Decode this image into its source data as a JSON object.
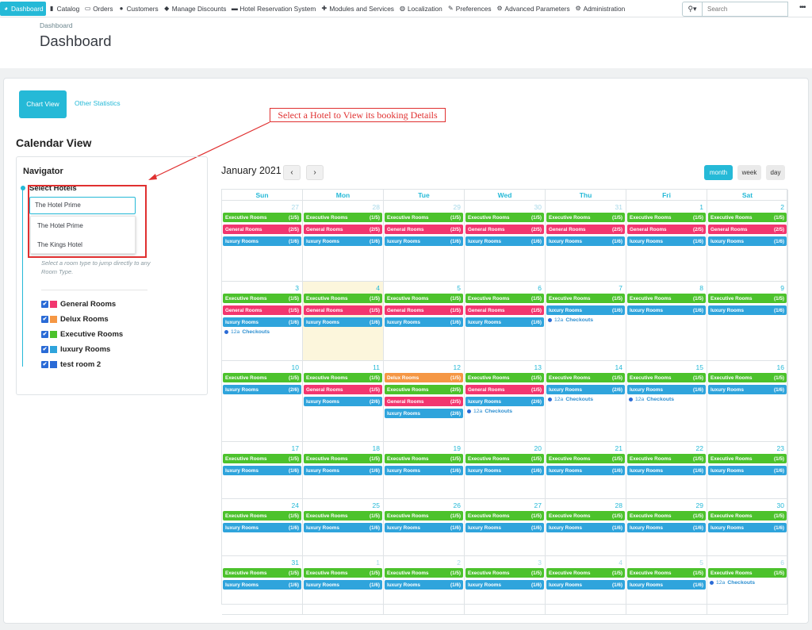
{
  "nav": {
    "items": [
      {
        "label": "Dashboard",
        "icon": "dashboard-icon",
        "active": true
      },
      {
        "label": "Catalog",
        "icon": "book-icon"
      },
      {
        "label": "Orders",
        "icon": "credit-card-icon"
      },
      {
        "label": "Customers",
        "icon": "users-icon"
      },
      {
        "label": "Manage Discounts",
        "icon": "tag-icon"
      },
      {
        "label": "Hotel Reservation System",
        "icon": "bed-icon"
      },
      {
        "label": "Modules and Services",
        "icon": "puzzle-icon"
      },
      {
        "label": "Localization",
        "icon": "globe-icon"
      },
      {
        "label": "Preferences",
        "icon": "wrench-icon"
      },
      {
        "label": "Advanced Parameters",
        "icon": "cogs-icon"
      },
      {
        "label": "Administration",
        "icon": "gear-icon"
      }
    ],
    "search_placeholder": "Search"
  },
  "header": {
    "breadcrumb": "Dashboard",
    "title": "Dashboard"
  },
  "tabs": {
    "chart_view": "Chart View",
    "other_statistics": "Other Statistics"
  },
  "annotation": "Select a Hotel to View its booking Details",
  "calendar_view_title": "Calendar View",
  "navigator": {
    "heading": "Navigator",
    "select_label": "Select Hotels",
    "selected_hotel": "The Hotel Prime",
    "options": [
      "The Hotel Prime",
      "The Kings Hotel"
    ],
    "hint": "Select a room type to jump directly to any Room Type.",
    "room_types": [
      {
        "label": "General Rooms",
        "color": "#f2366f",
        "checked": true
      },
      {
        "label": "Delux Rooms",
        "color": "#f59744",
        "checked": true
      },
      {
        "label": "Executive Rooms",
        "color": "#4cc22c",
        "checked": true
      },
      {
        "label": "luxury Rooms",
        "color": "#2fa4dc",
        "checked": true
      },
      {
        "label": "test room 2",
        "color": "#2a6bd6",
        "checked": true
      }
    ]
  },
  "calendar": {
    "month_title": "January 2021",
    "prev": "‹",
    "next": "›",
    "view_buttons": {
      "month": "month",
      "week": "week",
      "day": "day"
    },
    "days": [
      "Sun",
      "Mon",
      "Tue",
      "Wed",
      "Thu",
      "Fri",
      "Sat"
    ],
    "colors": {
      "Executive Rooms": "#4cc22c",
      "General Rooms": "#f2366f",
      "luxury Rooms": "#2fa4dc",
      "Delux Rooms": "#f59744"
    },
    "checkout_label": "Checkouts",
    "weeks": [
      [
        {
          "d": "27",
          "other": true,
          "ev": [
            [
              "Executive Rooms",
              "(1/5)"
            ],
            [
              "General Rooms",
              "(2/5)"
            ],
            [
              "luxury Rooms",
              "(1/6)"
            ]
          ]
        },
        {
          "d": "28",
          "other": true,
          "ev": [
            [
              "Executive Rooms",
              "(1/5)"
            ],
            [
              "General Rooms",
              "(2/5)"
            ],
            [
              "luxury Rooms",
              "(1/6)"
            ]
          ]
        },
        {
          "d": "29",
          "other": true,
          "ev": [
            [
              "Executive Rooms",
              "(1/5)"
            ],
            [
              "General Rooms",
              "(2/5)"
            ],
            [
              "luxury Rooms",
              "(1/6)"
            ]
          ]
        },
        {
          "d": "30",
          "other": true,
          "ev": [
            [
              "Executive Rooms",
              "(1/5)"
            ],
            [
              "General Rooms",
              "(2/5)"
            ],
            [
              "luxury Rooms",
              "(1/6)"
            ]
          ]
        },
        {
          "d": "31",
          "other": true,
          "ev": [
            [
              "Executive Rooms",
              "(1/5)"
            ],
            [
              "General Rooms",
              "(2/5)"
            ],
            [
              "luxury Rooms",
              "(1/6)"
            ]
          ]
        },
        {
          "d": "1",
          "ev": [
            [
              "Executive Rooms",
              "(1/5)"
            ],
            [
              "General Rooms",
              "(2/5)"
            ],
            [
              "luxury Rooms",
              "(1/6)"
            ]
          ]
        },
        {
          "d": "2",
          "ev": [
            [
              "Executive Rooms",
              "(1/5)"
            ],
            [
              "General Rooms",
              "(2/5)"
            ],
            [
              "luxury Rooms",
              "(1/6)"
            ]
          ]
        }
      ],
      [
        {
          "d": "3",
          "ev": [
            [
              "Executive Rooms",
              "(1/5)"
            ],
            [
              "General Rooms",
              "(1/5)"
            ],
            [
              "luxury Rooms",
              "(1/6)"
            ]
          ],
          "co": "12a"
        },
        {
          "d": "4",
          "today": true,
          "ev": [
            [
              "Executive Rooms",
              "(1/5)"
            ],
            [
              "General Rooms",
              "(1/5)"
            ],
            [
              "luxury Rooms",
              "(1/6)"
            ]
          ]
        },
        {
          "d": "5",
          "ev": [
            [
              "Executive Rooms",
              "(1/5)"
            ],
            [
              "General Rooms",
              "(1/5)"
            ],
            [
              "luxury Rooms",
              "(1/6)"
            ]
          ]
        },
        {
          "d": "6",
          "ev": [
            [
              "Executive Rooms",
              "(1/5)"
            ],
            [
              "General Rooms",
              "(1/5)"
            ],
            [
              "luxury Rooms",
              "(1/6)"
            ]
          ]
        },
        {
          "d": "7",
          "ev": [
            [
              "Executive Rooms",
              "(1/5)"
            ],
            [
              "luxury Rooms",
              "(1/6)"
            ]
          ],
          "co": "12a"
        },
        {
          "d": "8",
          "ev": [
            [
              "Executive Rooms",
              "(1/5)"
            ],
            [
              "luxury Rooms",
              "(1/6)"
            ]
          ]
        },
        {
          "d": "9",
          "ev": [
            [
              "Executive Rooms",
              "(1/5)"
            ],
            [
              "luxury Rooms",
              "(1/6)"
            ]
          ]
        }
      ],
      [
        {
          "d": "10",
          "ev": [
            [
              "Executive Rooms",
              "(1/5)"
            ],
            [
              "luxury Rooms",
              "(2/6)"
            ]
          ]
        },
        {
          "d": "11",
          "ev": [
            [
              "Executive Rooms",
              "(1/5)"
            ],
            [
              "General Rooms",
              "(1/5)"
            ],
            [
              "luxury Rooms",
              "(2/6)"
            ]
          ]
        },
        {
          "d": "12",
          "ev": [
            [
              "Delux Rooms",
              "(1/5)"
            ],
            [
              "Executive Rooms",
              "(2/5)"
            ],
            [
              "General Rooms",
              "(2/5)"
            ],
            [
              "luxury Rooms",
              "(2/6)"
            ]
          ]
        },
        {
          "d": "13",
          "ev": [
            [
              "Executive Rooms",
              "(1/5)"
            ],
            [
              "General Rooms",
              "(1/5)"
            ],
            [
              "luxury Rooms",
              "(2/6)"
            ]
          ],
          "co": "12a"
        },
        {
          "d": "14",
          "ev": [
            [
              "Executive Rooms",
              "(1/5)"
            ],
            [
              "luxury Rooms",
              "(2/6)"
            ]
          ],
          "co": "12a"
        },
        {
          "d": "15",
          "ev": [
            [
              "Executive Rooms",
              "(1/5)"
            ],
            [
              "luxury Rooms",
              "(1/6)"
            ]
          ],
          "co": "12a"
        },
        {
          "d": "16",
          "ev": [
            [
              "Executive Rooms",
              "(1/5)"
            ],
            [
              "luxury Rooms",
              "(1/6)"
            ]
          ]
        }
      ],
      [
        {
          "d": "17",
          "ev": [
            [
              "Executive Rooms",
              "(1/5)"
            ],
            [
              "luxury Rooms",
              "(1/6)"
            ]
          ]
        },
        {
          "d": "18",
          "ev": [
            [
              "Executive Rooms",
              "(1/5)"
            ],
            [
              "luxury Rooms",
              "(1/6)"
            ]
          ]
        },
        {
          "d": "19",
          "ev": [
            [
              "Executive Rooms",
              "(1/5)"
            ],
            [
              "luxury Rooms",
              "(1/6)"
            ]
          ]
        },
        {
          "d": "20",
          "ev": [
            [
              "Executive Rooms",
              "(1/5)"
            ],
            [
              "luxury Rooms",
              "(1/6)"
            ]
          ]
        },
        {
          "d": "21",
          "ev": [
            [
              "Executive Rooms",
              "(1/5)"
            ],
            [
              "luxury Rooms",
              "(1/6)"
            ]
          ]
        },
        {
          "d": "22",
          "ev": [
            [
              "Executive Rooms",
              "(1/5)"
            ],
            [
              "luxury Rooms",
              "(1/6)"
            ]
          ]
        },
        {
          "d": "23",
          "ev": [
            [
              "Executive Rooms",
              "(1/5)"
            ],
            [
              "luxury Rooms",
              "(1/6)"
            ]
          ]
        }
      ],
      [
        {
          "d": "24",
          "ev": [
            [
              "Executive Rooms",
              "(1/5)"
            ],
            [
              "luxury Rooms",
              "(1/6)"
            ]
          ]
        },
        {
          "d": "25",
          "ev": [
            [
              "Executive Rooms",
              "(1/5)"
            ],
            [
              "luxury Rooms",
              "(1/6)"
            ]
          ]
        },
        {
          "d": "26",
          "ev": [
            [
              "Executive Rooms",
              "(1/5)"
            ],
            [
              "luxury Rooms",
              "(1/6)"
            ]
          ]
        },
        {
          "d": "27",
          "ev": [
            [
              "Executive Rooms",
              "(1/5)"
            ],
            [
              "luxury Rooms",
              "(1/6)"
            ]
          ]
        },
        {
          "d": "28",
          "ev": [
            [
              "Executive Rooms",
              "(1/5)"
            ],
            [
              "luxury Rooms",
              "(1/6)"
            ]
          ]
        },
        {
          "d": "29",
          "ev": [
            [
              "Executive Rooms",
              "(1/5)"
            ],
            [
              "luxury Rooms",
              "(1/6)"
            ]
          ]
        },
        {
          "d": "30",
          "ev": [
            [
              "Executive Rooms",
              "(1/5)"
            ],
            [
              "luxury Rooms",
              "(1/6)"
            ]
          ]
        }
      ],
      [
        {
          "d": "31",
          "ev": [
            [
              "Executive Rooms",
              "(1/5)"
            ],
            [
              "luxury Rooms",
              "(1/6)"
            ]
          ]
        },
        {
          "d": "1",
          "other": true,
          "ev": [
            [
              "Executive Rooms",
              "(1/5)"
            ],
            [
              "luxury Rooms",
              "(1/6)"
            ]
          ]
        },
        {
          "d": "2",
          "other": true,
          "ev": [
            [
              "Executive Rooms",
              "(1/5)"
            ],
            [
              "luxury Rooms",
              "(1/6)"
            ]
          ]
        },
        {
          "d": "3",
          "other": true,
          "ev": [
            [
              "Executive Rooms",
              "(1/5)"
            ],
            [
              "luxury Rooms",
              "(1/6)"
            ]
          ]
        },
        {
          "d": "4",
          "other": true,
          "ev": [
            [
              "Executive Rooms",
              "(1/5)"
            ],
            [
              "luxury Rooms",
              "(1/6)"
            ]
          ]
        },
        {
          "d": "5",
          "other": true,
          "ev": [
            [
              "Executive Rooms",
              "(1/5)"
            ],
            [
              "luxury Rooms",
              "(1/6)"
            ]
          ]
        },
        {
          "d": "6",
          "other": true,
          "ev": [
            [
              "Executive Rooms",
              "(1/5)"
            ]
          ],
          "co": "12a"
        }
      ]
    ]
  }
}
